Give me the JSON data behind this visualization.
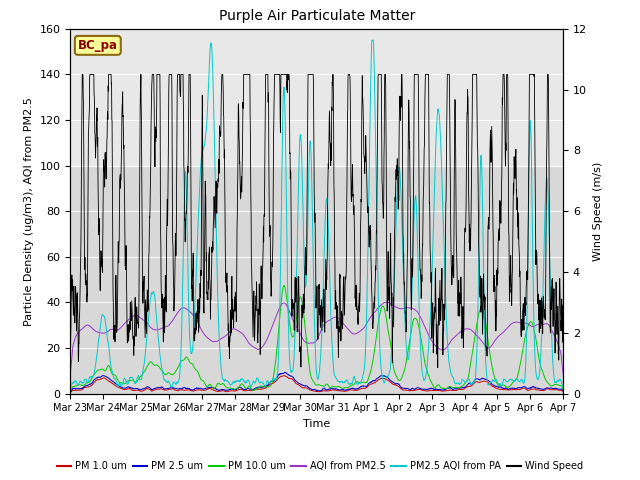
{
  "title": "Purple Air Particulate Matter",
  "xlabel": "Time",
  "ylabel_left": "Particle Density (ug/m3), AQI from PM2.5",
  "ylabel_right": "Wind Speed (m/s)",
  "annotation": "BC_pa",
  "annotation_color": "#8B0000",
  "annotation_bg": "#FFFF99",
  "annotation_border": "#8B6914",
  "ylim_left": [
    0,
    160
  ],
  "ylim_right": [
    0,
    12
  ],
  "yticks_left": [
    0,
    20,
    40,
    60,
    80,
    100,
    120,
    140,
    160
  ],
  "yticks_right": [
    0,
    2,
    4,
    6,
    8,
    10,
    12
  ],
  "shaded_lo": 100,
  "shaded_hi": 160,
  "xtick_labels": [
    "Mar 23",
    "Mar 24",
    "Mar 25",
    "Mar 26",
    "Mar 27",
    "Mar 28",
    "Mar 29",
    "Mar 30",
    "Mar 31",
    "Apr 1",
    "Apr 2",
    "Apr 3",
    "Apr 4",
    "Apr 5",
    "Apr 6",
    "Apr 7"
  ],
  "series_colors": {
    "pm1": "#CC0000",
    "pm25": "#0000CC",
    "pm10": "#00CC00",
    "aqi_pm25": "#9933CC",
    "pm25_aqi_pa": "#00CCCC",
    "wind": "#000000"
  },
  "legend_labels": [
    "PM 1.0 um",
    "PM 2.5 um",
    "PM 10.0 um",
    "AQI from PM2.5",
    "PM2.5 AQI from PA",
    "Wind Speed"
  ],
  "bg_color": "#D8D8D8",
  "bg_upper_color": "#E8E8E8",
  "grid_color": "#FFFFFF"
}
